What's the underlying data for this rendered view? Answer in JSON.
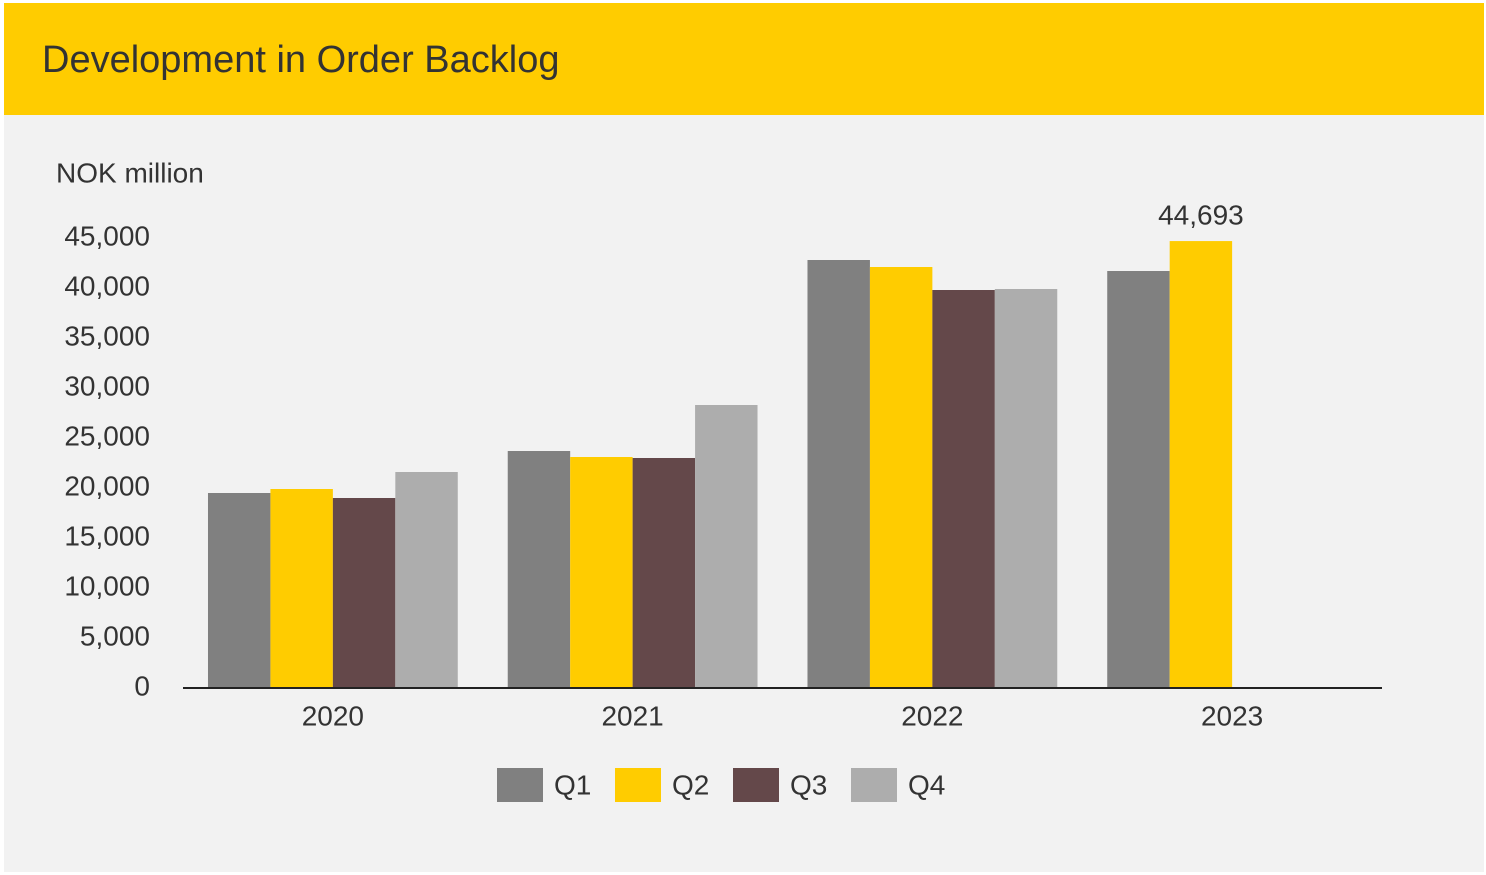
{
  "chart_data": {
    "type": "bar",
    "title": "Development in Order Backlog",
    "ylabel": "NOK million",
    "categories": [
      "2020",
      "2021",
      "2022",
      "2023"
    ],
    "series": [
      {
        "name": "Q1",
        "color": "#808080",
        "values": [
          19500,
          23700,
          42800,
          41700
        ]
      },
      {
        "name": "Q2",
        "color": "#ffcc00",
        "values": [
          19900,
          23100,
          42100,
          44693
        ],
        "value_labels": [
          null,
          null,
          null,
          "44,693"
        ]
      },
      {
        "name": "Q3",
        "color": "#64484a",
        "values": [
          19000,
          23000,
          39800,
          null
        ]
      },
      {
        "name": "Q4",
        "color": "#adadad",
        "values": [
          21600,
          28300,
          39900,
          null
        ]
      }
    ],
    "ylim": [
      0,
      45000
    ],
    "yticks": [
      0,
      {
        "value": 5000,
        "label": "5,000"
      },
      {
        "value": 10000,
        "label": "10,000"
      },
      {
        "value": 15000,
        "label": "15,000"
      },
      {
        "value": 20000,
        "label": "20,000"
      },
      {
        "value": 25000,
        "label": "25,000"
      },
      {
        "value": 30000,
        "label": "30,000"
      },
      {
        "value": 35000,
        "label": "35,000"
      },
      {
        "value": 40000,
        "label": "40,000"
      },
      {
        "value": 45000,
        "label": "45,000"
      }
    ],
    "grid": false,
    "legend": "bottom"
  }
}
